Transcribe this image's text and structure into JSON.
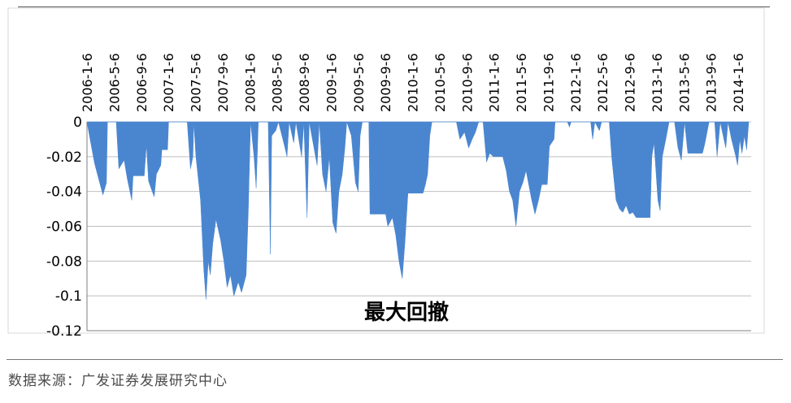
{
  "chart_data": {
    "type": "area",
    "title": "最大回撤",
    "xlabel": "",
    "ylabel": "",
    "ylim": [
      -0.12,
      0
    ],
    "yticks": [
      0,
      -0.02,
      -0.04,
      -0.06,
      -0.08,
      -0.1,
      -0.12
    ],
    "ytick_labels": [
      "0",
      "-0.02",
      "-0.04",
      "-0.06",
      "-0.08",
      "-0.1",
      "-0.12"
    ],
    "xtick_labels": [
      "2006-1-6",
      "2006-5-6",
      "2006-9-6",
      "2007-1-6",
      "2007-5-6",
      "2007-9-6",
      "2008-1-6",
      "2008-5-6",
      "2008-9-6",
      "2009-1-6",
      "2009-5-6",
      "2009-9-6",
      "2010-1-6",
      "2010-5-6",
      "2010-9-6",
      "2011-1-6",
      "2011-5-6",
      "2011-9-6",
      "2012-1-6",
      "2012-5-6",
      "2012-9-6",
      "2013-1-6",
      "2013-5-6",
      "2013-9-6",
      "2014-1-6"
    ],
    "grid": true,
    "color": "#4a86d0",
    "series": [
      {
        "name": "",
        "points": [
          [
            "2006-01-06",
            0
          ],
          [
            "2006-01-20",
            -0.01
          ],
          [
            "2006-02-10",
            -0.024
          ],
          [
            "2006-03-01",
            -0.033
          ],
          [
            "2006-03-20",
            -0.042
          ],
          [
            "2006-04-05",
            -0.035
          ],
          [
            "2006-04-10",
            0
          ],
          [
            "2006-05-20",
            0
          ],
          [
            "2006-06-01",
            -0.027
          ],
          [
            "2006-06-25",
            -0.022
          ],
          [
            "2006-07-10",
            -0.033
          ],
          [
            "2006-07-30",
            -0.045
          ],
          [
            "2006-08-05",
            -0.031
          ],
          [
            "2006-09-25",
            -0.031
          ],
          [
            "2006-10-05",
            -0.013
          ],
          [
            "2006-10-15",
            -0.034
          ],
          [
            "2006-11-01",
            -0.04
          ],
          [
            "2006-11-10",
            -0.043
          ],
          [
            "2006-11-20",
            -0.03
          ],
          [
            "2006-12-10",
            -0.025
          ],
          [
            "2006-12-15",
            -0.016
          ],
          [
            "2007-01-10",
            -0.016
          ],
          [
            "2007-01-15",
            0
          ],
          [
            "2007-04-10",
            0
          ],
          [
            "2007-04-25",
            -0.027
          ],
          [
            "2007-05-06",
            -0.02
          ],
          [
            "2007-05-10",
            0
          ],
          [
            "2007-05-20",
            -0.02
          ],
          [
            "2007-06-10",
            -0.045
          ],
          [
            "2007-06-25",
            -0.085
          ],
          [
            "2007-07-05",
            -0.102
          ],
          [
            "2007-07-15",
            -0.08
          ],
          [
            "2007-07-25",
            -0.088
          ],
          [
            "2007-08-05",
            -0.07
          ],
          [
            "2007-08-20",
            -0.056
          ],
          [
            "2007-09-10",
            -0.068
          ],
          [
            "2007-09-25",
            -0.08
          ],
          [
            "2007-10-10",
            -0.095
          ],
          [
            "2007-10-25",
            -0.088
          ],
          [
            "2007-11-10",
            -0.1
          ],
          [
            "2007-11-30",
            -0.092
          ],
          [
            "2007-12-15",
            -0.098
          ],
          [
            "2008-01-05",
            -0.088
          ],
          [
            "2008-01-15",
            -0.05
          ],
          [
            "2008-01-25",
            0
          ],
          [
            "2008-02-10",
            -0.02
          ],
          [
            "2008-02-20",
            -0.038
          ],
          [
            "2008-03-01",
            0
          ],
          [
            "2008-04-15",
            0
          ],
          [
            "2008-04-25",
            -0.076
          ],
          [
            "2008-05-01",
            -0.008
          ],
          [
            "2008-05-20",
            -0.005
          ],
          [
            "2008-06-01",
            0
          ],
          [
            "2008-07-01",
            -0.015
          ],
          [
            "2008-07-10",
            -0.02
          ],
          [
            "2008-07-20",
            0
          ],
          [
            "2008-08-10",
            -0.012
          ],
          [
            "2008-08-20",
            0
          ],
          [
            "2008-09-15",
            -0.02
          ],
          [
            "2008-09-25",
            0
          ],
          [
            "2008-10-10",
            -0.055
          ],
          [
            "2008-10-20",
            0
          ],
          [
            "2008-11-25",
            -0.025
          ],
          [
            "2008-12-05",
            0
          ],
          [
            "2008-12-20",
            -0.03
          ],
          [
            "2009-01-05",
            -0.04
          ],
          [
            "2009-01-20",
            -0.02
          ],
          [
            "2009-02-05",
            -0.058
          ],
          [
            "2009-02-20",
            -0.064
          ],
          [
            "2009-03-05",
            -0.04
          ],
          [
            "2009-03-20",
            -0.03
          ],
          [
            "2009-04-01",
            -0.015
          ],
          [
            "2009-04-10",
            0
          ],
          [
            "2009-05-01",
            -0.008
          ],
          [
            "2009-05-20",
            -0.035
          ],
          [
            "2009-06-01",
            -0.04
          ],
          [
            "2009-06-10",
            -0.008
          ],
          [
            "2009-06-20",
            0
          ],
          [
            "2009-07-20",
            0
          ],
          [
            "2009-07-25",
            -0.053
          ],
          [
            "2009-10-05",
            -0.053
          ],
          [
            "2009-10-15",
            -0.06
          ],
          [
            "2009-11-05",
            -0.055
          ],
          [
            "2009-11-20",
            -0.065
          ],
          [
            "2009-12-05",
            -0.08
          ],
          [
            "2009-12-20",
            -0.09
          ],
          [
            "2010-01-01",
            -0.07
          ],
          [
            "2010-01-15",
            -0.041
          ],
          [
            "2010-03-25",
            -0.041
          ],
          [
            "2010-04-05",
            -0.036
          ],
          [
            "2010-04-15",
            -0.03
          ],
          [
            "2010-04-25",
            -0.008
          ],
          [
            "2010-05-05",
            0
          ],
          [
            "2010-08-25",
            0
          ],
          [
            "2010-09-10",
            -0.01
          ],
          [
            "2010-10-01",
            -0.006
          ],
          [
            "2010-10-20",
            -0.015
          ],
          [
            "2010-11-05",
            -0.01
          ],
          [
            "2010-11-20",
            -0.006
          ],
          [
            "2010-12-05",
            0
          ],
          [
            "2010-12-25",
            0
          ],
          [
            "2011-01-10",
            -0.023
          ],
          [
            "2011-01-25",
            -0.018
          ],
          [
            "2011-02-10",
            -0.02
          ],
          [
            "2011-03-25",
            -0.02
          ],
          [
            "2011-04-10",
            -0.028
          ],
          [
            "2011-04-25",
            -0.04
          ],
          [
            "2011-05-10",
            -0.045
          ],
          [
            "2011-05-25",
            -0.06
          ],
          [
            "2011-06-10",
            -0.04
          ],
          [
            "2011-06-25",
            -0.035
          ],
          [
            "2011-07-10",
            -0.028
          ],
          [
            "2011-08-05",
            -0.045
          ],
          [
            "2011-08-20",
            -0.053
          ],
          [
            "2011-09-05",
            -0.045
          ],
          [
            "2011-09-20",
            -0.036
          ],
          [
            "2011-10-15",
            -0.036
          ],
          [
            "2011-10-25",
            -0.014
          ],
          [
            "2011-11-15",
            -0.01
          ],
          [
            "2011-11-20",
            0
          ],
          [
            "2012-01-15",
            0
          ],
          [
            "2012-01-25",
            -0.003
          ],
          [
            "2012-02-01",
            0
          ],
          [
            "2012-05-01",
            0
          ],
          [
            "2012-05-10",
            -0.01
          ],
          [
            "2012-05-20",
            0
          ],
          [
            "2012-06-10",
            -0.005
          ],
          [
            "2012-06-20",
            0
          ],
          [
            "2012-07-25",
            0
          ],
          [
            "2012-08-05",
            -0.02
          ],
          [
            "2012-08-25",
            -0.045
          ],
          [
            "2012-09-10",
            -0.05
          ],
          [
            "2012-09-25",
            -0.052
          ],
          [
            "2012-10-10",
            -0.048
          ],
          [
            "2012-10-25",
            -0.053
          ],
          [
            "2012-11-10",
            -0.052
          ],
          [
            "2012-11-25",
            -0.055
          ],
          [
            "2013-01-28",
            -0.055
          ],
          [
            "2013-02-05",
            -0.02
          ],
          [
            "2013-02-15",
            -0.012
          ],
          [
            "2013-03-05",
            -0.045
          ],
          [
            "2013-03-15",
            -0.051
          ],
          [
            "2013-03-25",
            -0.02
          ],
          [
            "2013-04-10",
            -0.01
          ],
          [
            "2013-04-25",
            0
          ],
          [
            "2013-05-20",
            0
          ],
          [
            "2013-06-05",
            -0.015
          ],
          [
            "2013-06-20",
            -0.022
          ],
          [
            "2013-07-05",
            0
          ],
          [
            "2013-07-20",
            -0.018
          ],
          [
            "2013-09-25",
            -0.018
          ],
          [
            "2013-10-05",
            -0.013
          ],
          [
            "2013-10-25",
            0
          ],
          [
            "2013-11-20",
            0
          ],
          [
            "2013-12-01",
            -0.02
          ],
          [
            "2013-12-15",
            0
          ],
          [
            "2014-01-10",
            -0.015
          ],
          [
            "2014-01-20",
            0
          ],
          [
            "2014-02-05",
            -0.01
          ],
          [
            "2014-02-25",
            -0.02
          ],
          [
            "2014-03-05",
            -0.025
          ],
          [
            "2014-03-15",
            -0.01
          ],
          [
            "2014-03-25",
            -0.018
          ],
          [
            "2014-04-05",
            -0.008
          ],
          [
            "2014-04-15",
            -0.016
          ],
          [
            "2014-04-25",
            0
          ]
        ]
      }
    ]
  },
  "footer": {
    "source": "数据来源：广发证券发展研究中心"
  }
}
